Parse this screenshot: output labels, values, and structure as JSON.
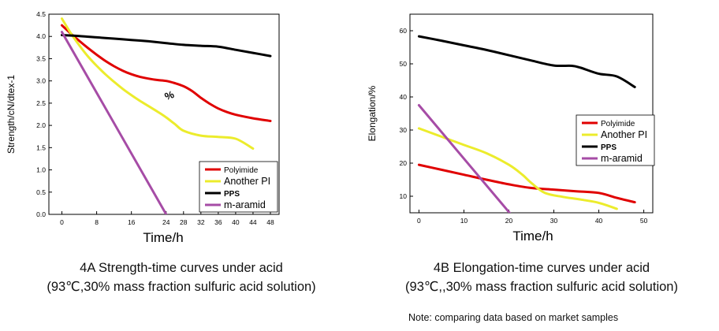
{
  "colors": {
    "polyimide": "#e00000",
    "another_pi": "#ecec2c",
    "pps": "#000000",
    "m_aramid": "#a64ca6"
  },
  "chart_data": [
    {
      "type": "line",
      "xlabel": "Time/h",
      "ylabel": "Strength/cN/dtex-1",
      "xlim": [
        -3,
        50
      ],
      "ylim": [
        0,
        4.5
      ],
      "xticks": [
        "0",
        "8",
        "16",
        "24",
        "28",
        "32",
        "36",
        "40",
        "44",
        "48"
      ],
      "xtick_values": [
        0,
        8,
        16,
        24,
        28,
        32,
        36,
        40,
        44,
        48
      ],
      "yticks": [
        "0.0",
        "0.5",
        "1.0",
        "1.5",
        "2.0",
        "2.5",
        "3.0",
        "3.5",
        "4.0",
        "4.5"
      ],
      "ytick_values": [
        0,
        0.5,
        1.0,
        1.5,
        2.0,
        2.5,
        3.0,
        3.5,
        4.0,
        4.5
      ],
      "annotation": "%",
      "annotation_at": [
        25,
        2.6
      ],
      "legend": {
        "position": "bottom-right"
      },
      "series": [
        {
          "name": "Polyimide",
          "color": "#e00000",
          "x": [
            0,
            2,
            4,
            6,
            8,
            10,
            12,
            14,
            16,
            18,
            20,
            22,
            24,
            26,
            28,
            30,
            32,
            34,
            36,
            38,
            40,
            44,
            48
          ],
          "y": [
            4.25,
            4.07,
            3.9,
            3.74,
            3.59,
            3.45,
            3.33,
            3.23,
            3.15,
            3.09,
            3.05,
            3.02,
            3.0,
            2.95,
            2.88,
            2.77,
            2.62,
            2.49,
            2.38,
            2.3,
            2.24,
            2.16,
            2.1
          ]
        },
        {
          "name": "Another PI",
          "color": "#ecec2c",
          "x": [
            0,
            2,
            4,
            6,
            8,
            10,
            12,
            14,
            16,
            18,
            20,
            22,
            24,
            26,
            28,
            32,
            36,
            40,
            44
          ],
          "y": [
            4.4,
            4.08,
            3.8,
            3.55,
            3.34,
            3.15,
            2.98,
            2.82,
            2.68,
            2.55,
            2.43,
            2.31,
            2.18,
            2.03,
            1.88,
            1.77,
            1.74,
            1.7,
            1.48
          ]
        },
        {
          "name": "PPS",
          "color": "#000000",
          "x": [
            0,
            4,
            8,
            12,
            16,
            20,
            24,
            28,
            32,
            36,
            40,
            44,
            48
          ],
          "y": [
            4.03,
            4.01,
            3.98,
            3.95,
            3.92,
            3.89,
            3.85,
            3.81,
            3.79,
            3.77,
            3.7,
            3.63,
            3.56
          ]
        },
        {
          "name": "m-aramid",
          "color": "#a64ca6",
          "x": [
            0,
            24
          ],
          "y": [
            4.1,
            0.0
          ]
        }
      ]
    },
    {
      "type": "line",
      "xlabel": "Time/h",
      "ylabel": "Elongation/%",
      "xlim": [
        -2,
        52
      ],
      "ylim": [
        5,
        65
      ],
      "xticks": [
        "0",
        "10",
        "20",
        "30",
        "40",
        "50"
      ],
      "xtick_values": [
        0,
        10,
        20,
        30,
        40,
        50
      ],
      "yticks": [
        "10",
        "20",
        "30",
        "40",
        "50",
        "60"
      ],
      "ytick_values": [
        10,
        20,
        30,
        40,
        50,
        60
      ],
      "legend": {
        "position": "right"
      },
      "series": [
        {
          "name": "Polyimide",
          "color": "#e00000",
          "x": [
            0,
            5,
            10,
            15,
            20,
            25,
            30,
            35,
            40,
            44,
            48
          ],
          "y": [
            19.5,
            18.0,
            16.5,
            15.0,
            13.6,
            12.5,
            12.0,
            11.5,
            11.0,
            9.5,
            8.2
          ]
        },
        {
          "name": "Another PI",
          "color": "#ecec2c",
          "x": [
            0,
            5,
            10,
            15,
            20,
            23,
            25,
            28,
            32,
            36,
            40,
            44
          ],
          "y": [
            30.5,
            28.0,
            25.5,
            23.0,
            19.5,
            16.5,
            14.0,
            11.0,
            9.8,
            9.0,
            8.0,
            6.2
          ]
        },
        {
          "name": "PPS",
          "color": "#000000",
          "x": [
            0,
            5,
            10,
            15,
            20,
            25,
            30,
            34,
            36,
            40,
            44,
            48
          ],
          "y": [
            58.3,
            57.0,
            55.6,
            54.2,
            52.6,
            51.0,
            49.5,
            49.4,
            48.8,
            47.0,
            46.2,
            43.0
          ]
        },
        {
          "name": "m-aramid",
          "color": "#a64ca6",
          "x": [
            0,
            22
          ],
          "y": [
            37.5,
            2.0
          ]
        }
      ]
    }
  ],
  "captions": {
    "a_line1": "4A Strength-time curves under acid",
    "a_line2": "(93℃,30% mass fraction sulfuric acid solution)",
    "b_line1": "4B  Elongation-time curves under acid",
    "b_line2": "(93℃,,30% mass fraction sulfuric acid solution)"
  },
  "note": "Note: comparing data based on market samples"
}
